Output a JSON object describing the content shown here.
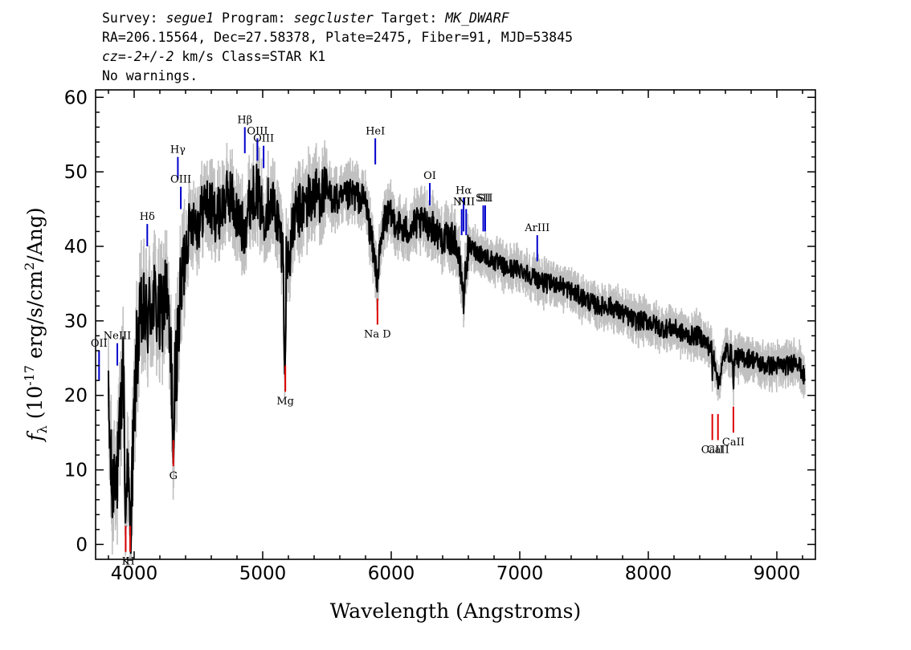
{
  "header": {
    "line1": {
      "survey_label": "Survey:",
      "survey": "segue1",
      "program_label": "Program:",
      "program": "segcluster",
      "target_label": "Target:",
      "target": "MK_DWARF"
    },
    "line2": "RA=206.15564, Dec=27.58378, Plate=2475, Fiber=91, MJD=53845",
    "line3": {
      "cz_prefix": "cz=",
      "cz_value": "-2+/-2",
      "cz_suffix": " km/s Class=STAR K1"
    },
    "line4": "No warnings."
  },
  "chart_data": {
    "type": "line",
    "xlabel": "Wavelength (Angstroms)",
    "ylabel": {
      "f": "f",
      "sub": "λ",
      "pre": " (10",
      "sup": "-17",
      "post": " erg/s/cm",
      "sup2": "2",
      "end": "/Ang)"
    },
    "xlim": [
      3700,
      9300
    ],
    "ylim": [
      -2,
      61
    ],
    "x_ticks": [
      4000,
      5000,
      6000,
      7000,
      8000,
      9000
    ],
    "y_ticks": [
      0,
      10,
      20,
      30,
      40,
      50,
      60
    ],
    "series": [
      {
        "role": "flux",
        "color": "#000000",
        "anchor_x": [
          3800,
          3830,
          3850,
          3870,
          3890,
          3910,
          3930,
          3950,
          3970,
          3990,
          4020,
          4060,
          4100,
          4150,
          4200,
          4250,
          4300,
          4330,
          4360,
          4400,
          4450,
          4500,
          4550,
          4600,
          4650,
          4700,
          4750,
          4800,
          4850,
          4900,
          4950,
          5000,
          5050,
          5100,
          5150,
          5200,
          5250,
          5300,
          5400,
          5500,
          5600,
          5700,
          5800,
          5890,
          5950,
          6000,
          6100,
          6200,
          6300,
          6400,
          6500,
          6563,
          6600,
          6700,
          6800,
          6900,
          7000,
          7100,
          7200,
          7300,
          7400,
          7500,
          7600,
          7700,
          7800,
          7900,
          8000,
          8100,
          8200,
          8300,
          8400,
          8500,
          8550,
          8600,
          8700,
          8800,
          8900,
          9000,
          9100,
          9150,
          9200,
          9220
        ],
        "anchor_y": [
          18,
          6,
          12,
          9,
          15,
          24,
          18,
          8,
          3,
          12,
          26,
          31,
          30,
          33,
          30,
          34,
          20,
          25,
          33,
          40,
          44,
          43,
          46,
          45,
          44,
          46,
          47,
          44,
          42,
          46,
          48,
          44,
          46,
          45,
          40,
          38,
          44,
          45,
          47,
          47,
          46,
          47,
          46,
          36,
          44,
          44,
          42,
          43,
          43,
          41,
          41,
          34,
          40,
          39,
          38,
          37,
          37,
          36,
          35,
          35,
          34,
          33,
          32,
          32,
          31,
          30,
          30,
          29,
          29,
          28,
          28,
          26,
          22,
          26,
          25,
          25,
          24,
          24,
          24,
          25,
          23,
          22
        ],
        "dips": [
          [
            3933,
            2
          ],
          [
            3968,
            3
          ],
          [
            4305,
            10
          ],
          [
            5172,
            22
          ],
          [
            5890,
            33
          ],
          [
            6563,
            31
          ],
          [
            8498,
            22
          ],
          [
            8542,
            20
          ],
          [
            8662,
            20
          ]
        ]
      },
      {
        "role": "flux-error-band",
        "color": "#c0c0c0"
      }
    ],
    "emission_lines": [
      {
        "label": "OII",
        "wavelength": 3727,
        "color": "#0000cc",
        "y1": 22,
        "y2": 26
      },
      {
        "label": "NeIII",
        "wavelength": 3869,
        "color": "#0000cc",
        "y1": 24,
        "y2": 27
      },
      {
        "label": "Hδ",
        "wavelength": 4102,
        "color": "#0000cc",
        "y1": 40,
        "y2": 43
      },
      {
        "label": "Hγ",
        "wavelength": 4340,
        "color": "#0000cc",
        "y1": 49,
        "y2": 52
      },
      {
        "label": "OIII",
        "wavelength": 4363,
        "color": "#0000cc",
        "y1": 45,
        "y2": 48
      },
      {
        "label": "Hβ",
        "wavelength": 4861,
        "color": "#0000cc",
        "y1": 52.5,
        "y2": 56
      },
      {
        "label": "OIII",
        "wavelength": 4959,
        "color": "#0000cc",
        "y1": 51.5,
        "y2": 54.5
      },
      {
        "label": "OIII",
        "wavelength": 5007,
        "color": "#0000cc",
        "y1": 50.5,
        "y2": 53.5
      },
      {
        "label": "HeI",
        "wavelength": 5876,
        "color": "#0000cc",
        "y1": 51,
        "y2": 54.5
      },
      {
        "label": "OI",
        "wavelength": 6300,
        "color": "#0000cc",
        "y1": 45.5,
        "y2": 48.5
      },
      {
        "label": "NII",
        "wavelength": 6548,
        "color": "#0000cc",
        "y1": 41.5,
        "y2": 45
      },
      {
        "label": "Hα",
        "wavelength": 6563,
        "color": "#0000cc",
        "y1": 42,
        "y2": 46.5
      },
      {
        "label": "NII",
        "wavelength": 6583,
        "color": "#0000cc",
        "y1": 41.5,
        "y2": 45
      },
      {
        "label": "SII",
        "wavelength": 6716,
        "color": "#0000cc",
        "y1": 42,
        "y2": 45.5
      },
      {
        "label": "SII",
        "wavelength": 6731,
        "color": "#0000cc",
        "y1": 42,
        "y2": 45.5
      },
      {
        "label": "ArIII",
        "wavelength": 7136,
        "color": "#0000cc",
        "y1": 38,
        "y2": 41.5
      }
    ],
    "absorption_lines": [
      {
        "label": "K",
        "wavelength": 3934,
        "color": "#dd0000",
        "y1": -1,
        "y2": 2.5
      },
      {
        "label": "H",
        "wavelength": 3969,
        "color": "#dd0000",
        "y1": -1,
        "y2": 2.5
      },
      {
        "label": "G",
        "wavelength": 4305,
        "color": "#dd0000",
        "y1": 10.5,
        "y2": 14
      },
      {
        "label": "Mg",
        "wavelength": 5176,
        "color": "#dd0000",
        "y1": 20.5,
        "y2": 24
      },
      {
        "label": "Na D",
        "wavelength": 5893,
        "color": "#dd0000",
        "y1": 29.5,
        "y2": 33
      },
      {
        "label": "CaII",
        "wavelength": 8498,
        "color": "#dd0000",
        "y1": 14,
        "y2": 17.5
      },
      {
        "label": "CaII",
        "wavelength": 8542,
        "color": "#dd0000",
        "y1": 14,
        "y2": 17.5
      },
      {
        "label": "CaII",
        "wavelength": 8662,
        "color": "#dd0000",
        "y1": 15,
        "y2": 18.5
      }
    ]
  }
}
